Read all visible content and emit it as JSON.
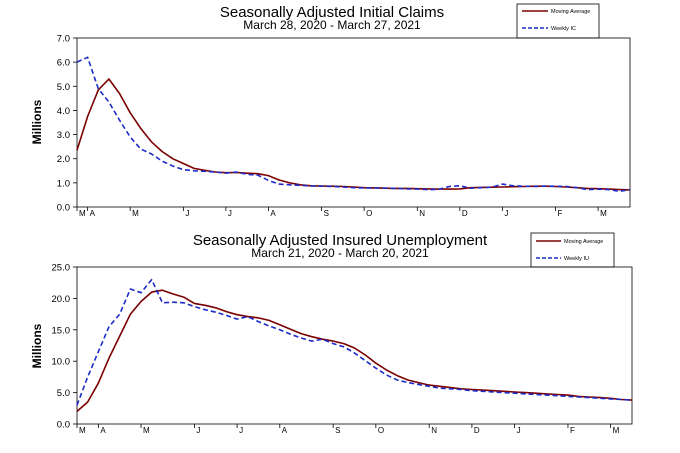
{
  "chart_data": [
    {
      "type": "line",
      "title": "Seasonally Adjusted Initial Claims",
      "subtitle": "March 28, 2020 - March 27, 2021",
      "ylabel": "Millions",
      "xlabel": "",
      "ylim": [
        0,
        7
      ],
      "yticks": [
        "0.0",
        "1.0",
        "2.0",
        "3.0",
        "4.0",
        "5.0",
        "6.0",
        "7.0"
      ],
      "grid": false,
      "legend_position": "top-right",
      "x_range": [
        0,
        52
      ],
      "months": [
        {
          "label": "M",
          "x": 0
        },
        {
          "label": "A",
          "x": 1
        },
        {
          "label": "M",
          "x": 5
        },
        {
          "label": "J",
          "x": 10
        },
        {
          "label": "J",
          "x": 14
        },
        {
          "label": "A",
          "x": 18
        },
        {
          "label": "S",
          "x": 23
        },
        {
          "label": "O",
          "x": 27
        },
        {
          "label": "N",
          "x": 32
        },
        {
          "label": "D",
          "x": 36
        },
        {
          "label": "J",
          "x": 40
        },
        {
          "label": "F",
          "x": 45
        },
        {
          "label": "M",
          "x": 49
        }
      ],
      "series": [
        {
          "name": "Moving Average",
          "color": "#7b0000",
          "style": "solid",
          "values": [
            2.35,
            3.75,
            4.85,
            5.3,
            4.7,
            3.9,
            3.25,
            2.7,
            2.3,
            2.0,
            1.8,
            1.6,
            1.52,
            1.45,
            1.42,
            1.43,
            1.4,
            1.38,
            1.3,
            1.12,
            1.0,
            0.92,
            0.88,
            0.87,
            0.86,
            0.85,
            0.83,
            0.8,
            0.79,
            0.78,
            0.77,
            0.77,
            0.76,
            0.75,
            0.74,
            0.74,
            0.75,
            0.8,
            0.81,
            0.82,
            0.83,
            0.84,
            0.85,
            0.86,
            0.86,
            0.85,
            0.83,
            0.8,
            0.77,
            0.76,
            0.74,
            0.72,
            0.71
          ]
        },
        {
          "name": "Weekly IC",
          "color": "#1c2bc8",
          "style": "dashed",
          "values": [
            6.0,
            6.2,
            4.9,
            4.35,
            3.6,
            2.9,
            2.4,
            2.2,
            1.9,
            1.7,
            1.55,
            1.5,
            1.48,
            1.45,
            1.4,
            1.45,
            1.35,
            1.32,
            1.1,
            0.95,
            0.92,
            0.9,
            0.87,
            0.86,
            0.85,
            0.83,
            0.8,
            0.79,
            0.79,
            0.78,
            0.77,
            0.75,
            0.74,
            0.72,
            0.73,
            0.85,
            0.88,
            0.78,
            0.8,
            0.82,
            0.95,
            0.88,
            0.86,
            0.85,
            0.86,
            0.86,
            0.85,
            0.8,
            0.72,
            0.74,
            0.72,
            0.65,
            0.72
          ]
        }
      ]
    },
    {
      "type": "line",
      "title": "Seasonally Adjusted Insured Unemployment",
      "subtitle": "March 21, 2020 - March 20, 2021",
      "ylabel": "Millions",
      "xlabel": "",
      "ylim": [
        0,
        25
      ],
      "yticks": [
        "0.0",
        "5.0",
        "10.0",
        "15.0",
        "20.0",
        "25.0"
      ],
      "grid": false,
      "legend_position": "top-right",
      "x_range": [
        0,
        52
      ],
      "months": [
        {
          "label": "M",
          "x": 0
        },
        {
          "label": "A",
          "x": 2
        },
        {
          "label": "M",
          "x": 6
        },
        {
          "label": "J",
          "x": 11
        },
        {
          "label": "J",
          "x": 15
        },
        {
          "label": "A",
          "x": 19
        },
        {
          "label": "S",
          "x": 24
        },
        {
          "label": "O",
          "x": 28
        },
        {
          "label": "N",
          "x": 33
        },
        {
          "label": "D",
          "x": 37
        },
        {
          "label": "J",
          "x": 41
        },
        {
          "label": "F",
          "x": 46
        },
        {
          "label": "M",
          "x": 50
        }
      ],
      "series": [
        {
          "name": "Moving Average",
          "color": "#7b0000",
          "style": "solid",
          "values": [
            2.0,
            3.5,
            6.5,
            10.5,
            14.0,
            17.5,
            19.5,
            21.0,
            21.3,
            20.7,
            20.2,
            19.2,
            18.9,
            18.5,
            17.9,
            17.4,
            17.1,
            16.9,
            16.5,
            15.8,
            15.1,
            14.4,
            13.9,
            13.5,
            13.2,
            12.8,
            12.1,
            11.0,
            9.7,
            8.6,
            7.7,
            7.0,
            6.6,
            6.2,
            6.0,
            5.8,
            5.6,
            5.5,
            5.4,
            5.3,
            5.2,
            5.1,
            5.0,
            4.9,
            4.8,
            4.7,
            4.6,
            4.4,
            4.3,
            4.2,
            4.1,
            3.9,
            3.8
          ]
        },
        {
          "name": "Weekly IU",
          "color": "#1c2bc8",
          "style": "dashed",
          "values": [
            3.0,
            7.5,
            11.5,
            15.5,
            17.5,
            21.5,
            20.9,
            23.0,
            19.3,
            19.4,
            19.3,
            18.7,
            18.2,
            17.8,
            17.3,
            16.7,
            17.1,
            16.3,
            15.6,
            15.0,
            14.3,
            13.7,
            13.2,
            13.5,
            12.8,
            12.3,
            11.3,
            10.1,
            8.9,
            7.8,
            7.0,
            6.6,
            6.3,
            6.0,
            5.7,
            5.6,
            5.5,
            5.3,
            5.2,
            5.1,
            5.0,
            4.9,
            4.8,
            4.7,
            4.6,
            4.5,
            4.4,
            4.3,
            4.2,
            4.1,
            4.0,
            3.9,
            3.8
          ]
        }
      ]
    }
  ]
}
